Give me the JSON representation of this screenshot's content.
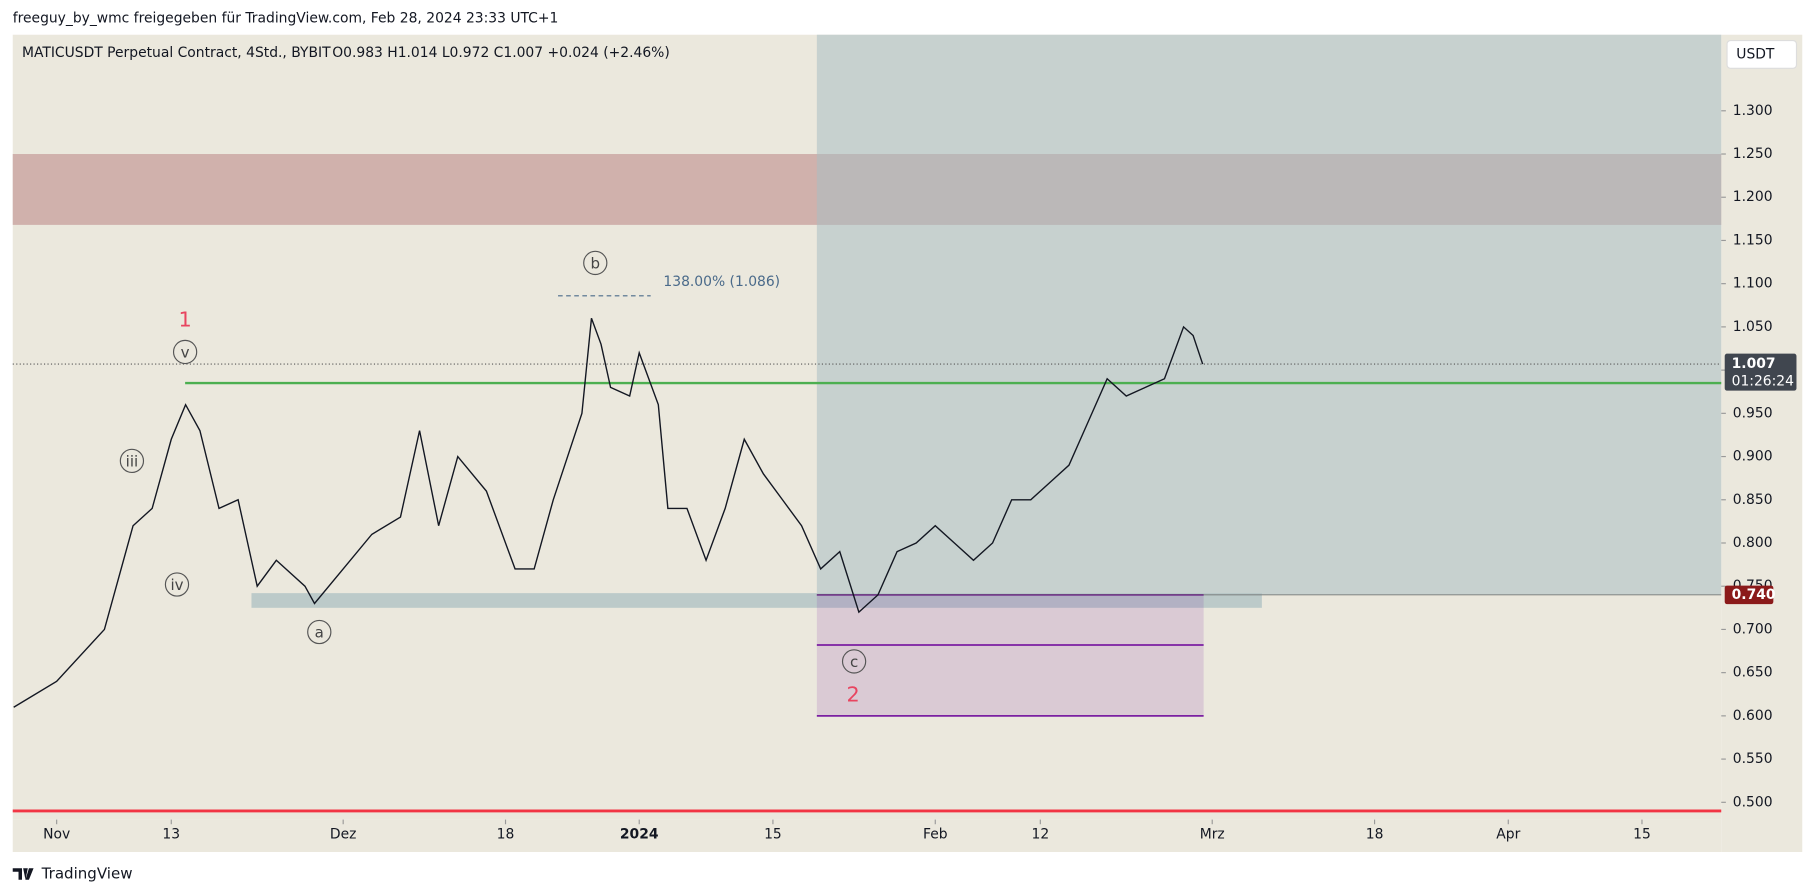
{
  "header": {
    "publisher": "freeguy_by_wmc freigegeben für TradingView.com, Feb 28, 2024 23:33 UTC+1",
    "footer": "TradingView"
  },
  "chart_data": {
    "type": "line",
    "title": "MATICUSDT Perpetual Contract, 4Std., BYBIT",
    "ohlc": "O0.983  H1.014  L0.972  C1.007  +0.024 (+2.46%)",
    "currency": "USDT",
    "x": [
      -4.5,
      0,
      5,
      8,
      10,
      12,
      13.5,
      15,
      17,
      19,
      21,
      23,
      26,
      27,
      30,
      33,
      36,
      38,
      40,
      42,
      45,
      48,
      50,
      52,
      55,
      56,
      57,
      58,
      60,
      61,
      62,
      63,
      64,
      66,
      68,
      70,
      72,
      74,
      76,
      78,
      80,
      82,
      84,
      86,
      88,
      90,
      92,
      94,
      96,
      98,
      100,
      102,
      104,
      106,
      108,
      110,
      112,
      114,
      116,
      118,
      119,
      120
    ],
    "series": [
      {
        "color": "#131722",
        "values": [
          0.61,
          0.64,
          0.7,
          0.82,
          0.84,
          0.92,
          0.96,
          0.93,
          0.84,
          0.85,
          0.75,
          0.78,
          0.75,
          0.73,
          0.77,
          0.81,
          0.83,
          0.93,
          0.82,
          0.9,
          0.86,
          0.77,
          0.77,
          0.85,
          0.95,
          1.06,
          1.03,
          0.98,
          0.97,
          1.02,
          0.99,
          0.96,
          0.84,
          0.84,
          0.78,
          0.84,
          0.92,
          0.88,
          0.85,
          0.82,
          0.77,
          0.79,
          0.72,
          0.74,
          0.79,
          0.8,
          0.82,
          0.8,
          0.78,
          0.8,
          0.85,
          0.85,
          0.87,
          0.89,
          0.94,
          0.99,
          0.97,
          0.98,
          0.99,
          1.05,
          1.04,
          1.007
        ]
      }
    ],
    "xlim": [
      -4.6,
      174.3
    ],
    "xticks": [
      {
        "value": 0,
        "label": "Nov"
      },
      {
        "value": 12,
        "label": "13"
      },
      {
        "value": 30,
        "label": "Dez"
      },
      {
        "value": 47,
        "label": "18"
      },
      {
        "value": 61,
        "label": "2024"
      },
      {
        "value": 75,
        "label": "15"
      },
      {
        "value": 92,
        "label": "Feb"
      },
      {
        "value": 103,
        "label": "12"
      },
      {
        "value": 121,
        "label": "Mrz"
      },
      {
        "value": 138,
        "label": "18"
      },
      {
        "value": 152,
        "label": "Apr"
      },
      {
        "value": 166,
        "label": "15"
      }
    ],
    "ylim": [
      0.48,
      1.388
    ],
    "yticks": [
      {
        "value": 0.5,
        "label": "0.500"
      },
      {
        "value": 0.55,
        "label": "0.550"
      },
      {
        "value": 0.6,
        "label": "0.600"
      },
      {
        "value": 0.65,
        "label": "0.650"
      },
      {
        "value": 0.7,
        "label": "0.700"
      },
      {
        "value": 0.75,
        "label": "0.750"
      },
      {
        "value": 0.8,
        "label": "0.800"
      },
      {
        "value": 0.85,
        "label": "0.850"
      },
      {
        "value": 0.9,
        "label": "0.900"
      },
      {
        "value": 0.95,
        "label": "0.950"
      },
      {
        "value": 1,
        "label": "1.000"
      },
      {
        "value": 1.05,
        "label": "1.050"
      },
      {
        "value": 1.1,
        "label": "1.100"
      },
      {
        "value": 1.15,
        "label": "1.150"
      },
      {
        "value": 1.2,
        "label": "1.200"
      },
      {
        "value": 1.25,
        "label": "1.250"
      },
      {
        "value": 1.3,
        "label": "1.300"
      }
    ],
    "last_price": {
      "value": 1.007,
      "label": "1.007"
    },
    "countdown": "01:26:24",
    "level_label": {
      "value": 0.74,
      "label": "0.740"
    },
    "resistance_zone": {
      "top": 1.25,
      "bottom": 1.168,
      "color": "#c9a3a0"
    },
    "target_box": {
      "x0": 79.6,
      "bottom": 0.74,
      "color": "#aabdc2"
    },
    "green_line": {
      "x0": 13.45,
      "price": 0.985,
      "color": "#4caf50"
    },
    "red_line": {
      "price": 0.49,
      "color": "#f23645"
    },
    "support_band": {
      "x0": 20.4,
      "x1": 126.2,
      "top": 0.742,
      "bottom": 0.725,
      "color": "#b4c4c6"
    },
    "purple_box": {
      "x0": 79.6,
      "x1": 120.1,
      "levels": [
        0.74,
        0.682,
        0.6
      ],
      "color": "#7b1fa2"
    },
    "fib": {
      "label": "138.00% (1.086)",
      "price": 1.086,
      "x0": 52.5,
      "x1": 62.2
    },
    "waves": [
      {
        "label": "1",
        "x": 13.45,
        "y": 1.059,
        "circle": false
      },
      {
        "label": "v",
        "x": 13.45,
        "y": 1.021,
        "circle": true
      },
      {
        "label": "iii",
        "x": 7.88,
        "y": 0.895,
        "circle": true
      },
      {
        "label": "iv",
        "x": 12.6,
        "y": 0.752,
        "circle": true
      },
      {
        "label": "a",
        "x": 27.5,
        "y": 0.697,
        "circle": true
      },
      {
        "label": "b",
        "x": 56.4,
        "y": 1.124,
        "circle": true
      },
      {
        "label": "c",
        "x": 83.5,
        "y": 0.663,
        "circle": true
      },
      {
        "label": "2",
        "x": 83.4,
        "y": 0.625,
        "circle": false
      }
    ]
  }
}
